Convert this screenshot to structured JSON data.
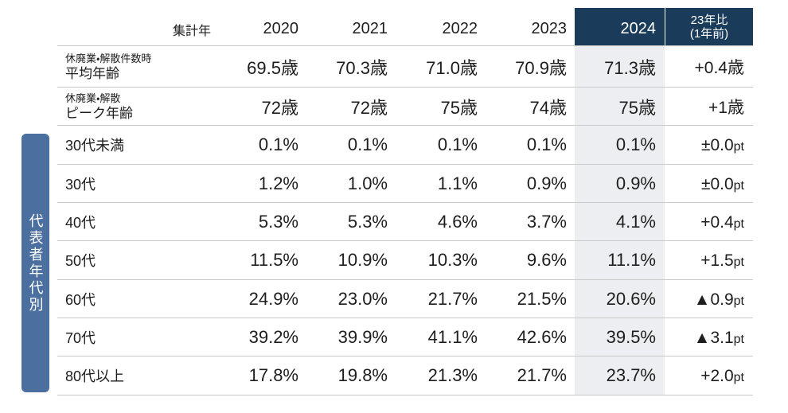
{
  "colors": {
    "header_bg": "#1a3c5a",
    "highlight_col_bg": "#eceef1",
    "group_label_bg": "#4b6f9f",
    "rule_line": "#c9c9c9"
  },
  "chart_data": {
    "type": "table",
    "header": {
      "corner": "集計年",
      "years": [
        "2020",
        "2021",
        "2022",
        "2023",
        "2024"
      ],
      "change_line1": "23年比",
      "change_line2": "(1年前)"
    },
    "group_label": "代表者年代別",
    "rows": [
      {
        "label_sub": "休廃業・解散件数時",
        "label": "平均年齢",
        "values": [
          "69.5歳",
          "70.3歳",
          "71.0歳",
          "70.9歳",
          "71.3歳"
        ],
        "change": "+0.4歳"
      },
      {
        "label_sub": "休廃業・解散",
        "label": "ピーク年齢",
        "values": [
          "72歳",
          "72歳",
          "75歳",
          "74歳",
          "75歳"
        ],
        "change": "+1歳"
      },
      {
        "label": "30代未満",
        "values": [
          "0.1%",
          "0.1%",
          "0.1%",
          "0.1%",
          "0.1%"
        ],
        "change": "±0.0",
        "change_unit": "pt"
      },
      {
        "label": "30代",
        "values": [
          "1.2%",
          "1.0%",
          "1.1%",
          "0.9%",
          "0.9%"
        ],
        "change": "±0.0",
        "change_unit": "pt"
      },
      {
        "label": "40代",
        "values": [
          "5.3%",
          "5.3%",
          "4.6%",
          "3.7%",
          "4.1%"
        ],
        "change": "+0.4",
        "change_unit": "pt"
      },
      {
        "label": "50代",
        "values": [
          "11.5%",
          "10.9%",
          "10.3%",
          "9.6%",
          "11.1%"
        ],
        "change": "+1.5",
        "change_unit": "pt"
      },
      {
        "label": "60代",
        "values": [
          "24.9%",
          "23.0%",
          "21.7%",
          "21.5%",
          "20.6%"
        ],
        "change": "▲0.9",
        "change_unit": "pt"
      },
      {
        "label": "70代",
        "values": [
          "39.2%",
          "39.9%",
          "41.1%",
          "42.6%",
          "39.5%"
        ],
        "change": "▲3.1",
        "change_unit": "pt"
      },
      {
        "label": "80代以上",
        "values": [
          "17.8%",
          "19.8%",
          "21.3%",
          "21.7%",
          "23.7%"
        ],
        "change": "+2.0",
        "change_unit": "pt"
      }
    ]
  }
}
